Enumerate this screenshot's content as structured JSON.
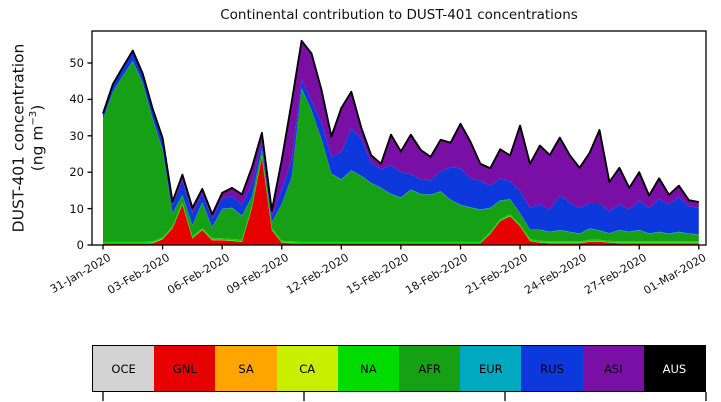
{
  "title": "Continental contribution to DUST-401 concentrations",
  "ylabel": {
    "line1": "DUST-401 concentration",
    "line2_pre": "(ng m",
    "line2_sup": "−3",
    "line2_post": ")"
  },
  "y_ticks": [
    0,
    10,
    20,
    30,
    40,
    50
  ],
  "x_tick_labels": [
    "31-Jan-2020",
    "03-Feb-2020",
    "06-Feb-2020",
    "09-Feb-2020",
    "12-Feb-2020",
    "15-Feb-2020",
    "18-Feb-2020",
    "21-Feb-2020",
    "24-Feb-2020",
    "27-Feb-2020",
    "01-Mar-2020"
  ],
  "legend": {
    "items": [
      {
        "label": "OCE",
        "color": "#d3d3d3",
        "text_color": "#000000"
      },
      {
        "label": "GNL",
        "color": "#e60000",
        "text_color": "#000000"
      },
      {
        "label": "SA",
        "color": "#ffa500",
        "text_color": "#000000"
      },
      {
        "label": "CA",
        "color": "#c8ee00",
        "text_color": "#000000"
      },
      {
        "label": "NA",
        "color": "#00dc00",
        "text_color": "#000000"
      },
      {
        "label": "AFR",
        "color": "#16a016",
        "text_color": "#000000"
      },
      {
        "label": "EUR",
        "color": "#00a8c0",
        "text_color": "#000000"
      },
      {
        "label": "RUS",
        "color": "#0d38dc",
        "text_color": "#000000"
      },
      {
        "label": "ASI",
        "color": "#7a0fa5",
        "text_color": "#000000"
      },
      {
        "label": "AUS",
        "color": "#000000",
        "text_color": "#ffffff"
      }
    ]
  },
  "chart_data": {
    "type": "area",
    "title": "Continental contribution to DUST-401 concentrations",
    "xlabel": "",
    "ylabel": "DUST-401 concentration (ng m-3)",
    "x_start": "31-Jan-2020 00:00",
    "x_end": "01-Mar-2020 00:00",
    "x_step_hours": 12,
    "n_points": 61,
    "ylim": [
      0,
      58.8
    ],
    "x_tick_labels": [
      "31-Jan-2020",
      "03-Feb-2020",
      "06-Feb-2020",
      "09-Feb-2020",
      "12-Feb-2020",
      "15-Feb-2020",
      "18-Feb-2020",
      "21-Feb-2020",
      "24-Feb-2020",
      "27-Feb-2020",
      "01-Mar-2020"
    ],
    "y_ticks": [
      0,
      10,
      20,
      30,
      40,
      50
    ],
    "legend_position": "bottom-strip",
    "grid": false,
    "stack_order": [
      "OCE",
      "GNL",
      "SA",
      "CA",
      "NA",
      "AFR",
      "EUR",
      "RUS",
      "ASI",
      "AUS"
    ],
    "colors": {
      "OCE": "#d3d3d3",
      "GNL": "#e60000",
      "SA": "#ffa500",
      "CA": "#c8ee00",
      "NA": "#00dc00",
      "AFR": "#16a016",
      "EUR": "#00a8c0",
      "RUS": "#0d38dc",
      "ASI": "#7a0fa5",
      "AUS": "#000000"
    },
    "outline_color": "#000000",
    "series": {
      "OCE": {
        "const": 0.1
      },
      "GNL": [
        0.3,
        0.3,
        0.3,
        0.3,
        0.3,
        0.4,
        1.5,
        4.5,
        11,
        1.7,
        4,
        1.2,
        1.2,
        1,
        0.8,
        10,
        24,
        4,
        0.5,
        0.4,
        0.3,
        0.3,
        0.3,
        0.3,
        0.3,
        0.3,
        0.3,
        0.3,
        0.3,
        0.3,
        0.3,
        0.3,
        0.3,
        0.3,
        0.3,
        0.3,
        0.3,
        0.3,
        0.3,
        3,
        6.5,
        7.8,
        5,
        1,
        0.5,
        0.4,
        0.4,
        0.4,
        0.4,
        0.8,
        0.8,
        0.5,
        0.4,
        0.4,
        0.4,
        0.4,
        0.4,
        0.4,
        0.4,
        0.4,
        0.4
      ],
      "SA": {
        "const": 0.05
      },
      "CA": {
        "const": 0.05
      },
      "NA": {
        "const": 0.45
      },
      "AFR": [
        33.5,
        41,
        45.5,
        49.5,
        43.5,
        33.5,
        24,
        3.5,
        2,
        3,
        7,
        2.9,
        8,
        8.5,
        6.5,
        2.5,
        1.5,
        1.5,
        10,
        17.5,
        42,
        36,
        28,
        18.5,
        17,
        19.5,
        18,
        16,
        14.7,
        13,
        12,
        14.2,
        13,
        12.8,
        13.7,
        11.4,
        10,
        9.3,
        8.7,
        6.5,
        5,
        4,
        3,
        2.5,
        3,
        2.5,
        3,
        2.5,
        2,
        3,
        2.5,
        2,
        3,
        2.5,
        3,
        2,
        2.5,
        2,
        2.5,
        2,
        1.8
      ],
      "EUR": {
        "const": 0.1
      },
      "RUS": [
        1.3,
        1.8,
        2,
        2.5,
        2.2,
        2.4,
        2.6,
        2.3,
        4,
        3.3,
        2.4,
        2.5,
        2.9,
        3.2,
        3,
        3.5,
        2,
        1.6,
        4,
        4.6,
        2.5,
        2.5,
        4.5,
        4.7,
        7.5,
        11.5,
        10.3,
        5.6,
        5,
        7.9,
        7,
        4.2,
        4,
        3.9,
        5.5,
        8.9,
        10,
        8,
        7.9,
        6.1,
        6,
        5,
        6,
        6,
        7,
        6,
        9.5,
        8,
        7,
        7,
        7.5,
        6,
        7,
        6,
        8,
        7,
        9,
        8,
        9.5,
        7.5,
        7.3
      ],
      "ASI": [
        0.2,
        0.3,
        0.3,
        0.3,
        0.3,
        0.3,
        0.5,
        0.8,
        1.5,
        1.4,
        1.2,
        1,
        1.4,
        2.2,
        2.8,
        4.5,
        2.5,
        1.5,
        8,
        16,
        10.5,
        13,
        9,
        5.5,
        12,
        10,
        2.9,
        2,
        1.5,
        8.3,
        5.6,
        10.8,
        8,
        6.4,
        8.6,
        6.7,
        12.2,
        10,
        4.6,
        4.7,
        8,
        7,
        18,
        12,
        16,
        15,
        15.8,
        13,
        11,
        13.7,
        20,
        8,
        10,
        6,
        7.8,
        3.4,
        5.6,
        2.6,
        3.1,
        1.6,
        1.5
      ],
      "AUS": {
        "const": 0.05
      }
    }
  }
}
